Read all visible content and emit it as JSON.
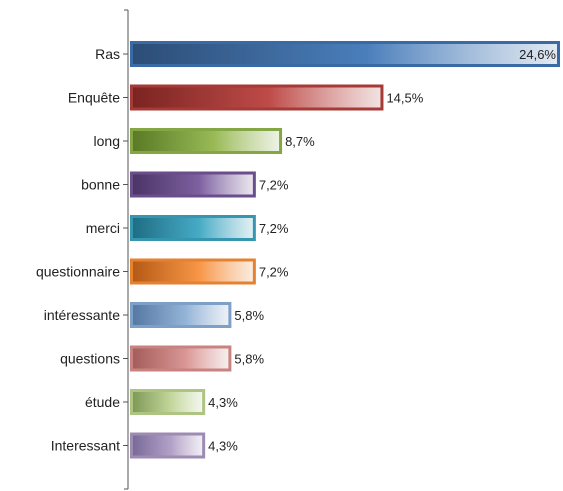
{
  "chart_data": {
    "type": "bar",
    "orientation": "horizontal",
    "title": "",
    "xlabel": "",
    "ylabel": "",
    "categories": [
      "Ras",
      "Enquête",
      "long",
      "bonne",
      "merci",
      "questionnaire",
      "intéressante",
      "questions",
      "étude",
      "Interessant"
    ],
    "values": [
      24.6,
      14.5,
      8.7,
      7.2,
      7.2,
      7.2,
      5.8,
      5.8,
      4.3,
      4.3
    ],
    "value_labels": [
      "24,6%",
      "14,5%",
      "8,7%",
      "7,2%",
      "7,2%",
      "7,2%",
      "5,8%",
      "5,8%",
      "4,3%",
      "4,3%"
    ],
    "unit": "%",
    "xlim": [
      0,
      24.6
    ],
    "grid": false,
    "legend": "none",
    "colors": [
      "#4a7ebb",
      "#be4b48",
      "#98b954",
      "#7d60a0",
      "#46aac5",
      "#f79646",
      "#94b3d7",
      "#d99694",
      "#c3d69b",
      "#b2a1c7"
    ],
    "dark_colors": [
      "#2c4d76",
      "#7a2421",
      "#5a7a26",
      "#4b3466",
      "#1f6e84",
      "#b55a15",
      "#5579a4",
      "#a45d5b",
      "#7f9a57",
      "#7a6a98"
    ],
    "border_colors": [
      "#3a6aa5",
      "#a53a37",
      "#84a645",
      "#6a4e8c",
      "#3596b0",
      "#e48232",
      "#7e9fc6",
      "#c88381",
      "#aec482",
      "#9d8bb3"
    ]
  }
}
